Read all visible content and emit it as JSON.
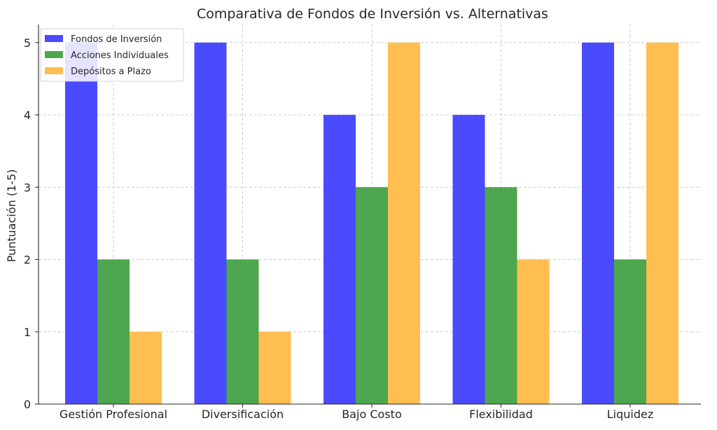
{
  "chart_data": {
    "type": "bar",
    "title": "Comparativa de Fondos de Inversión vs. Alternativas",
    "xlabel": "",
    "ylabel": "Puntuación (1-5)",
    "categories": [
      "Gestión Profesional",
      "Diversificación",
      "Bajo Costo",
      "Flexibilidad",
      "Liquidez"
    ],
    "series": [
      {
        "name": "Fondos de Inversión",
        "values": [
          5,
          5,
          4,
          4,
          5
        ],
        "color": "#4a4aff"
      },
      {
        "name": "Acciones Individuales",
        "values": [
          2,
          2,
          3,
          3,
          2
        ],
        "color": "#4ea64e"
      },
      {
        "name": "Depósitos a Plazo",
        "values": [
          1,
          1,
          5,
          2,
          5
        ],
        "color": "#ffbe4f"
      }
    ],
    "ylim": [
      0,
      5.25
    ],
    "yticks": [
      "0",
      "1",
      "2",
      "3",
      "4",
      "5"
    ],
    "grid": true,
    "legend_position": "top-left"
  }
}
